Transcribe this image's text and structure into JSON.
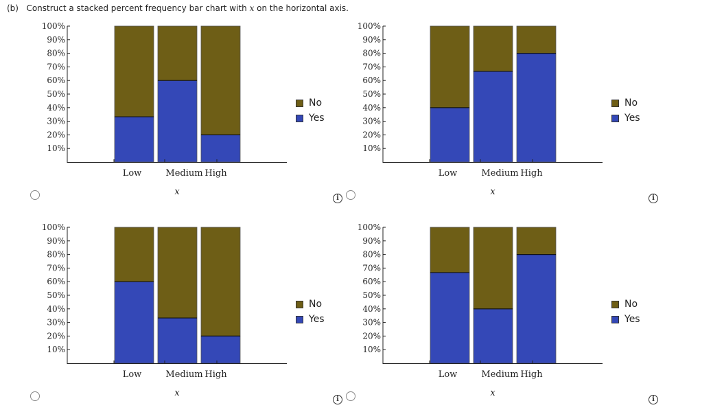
{
  "question": {
    "part": "(b)",
    "text_before": "Construct a stacked percent frequency bar chart with ",
    "var": "x",
    "text_after": " on the horizontal axis."
  },
  "colors": {
    "yes": "#3448b7",
    "no": "#6e5e16"
  },
  "chart_data": [
    {
      "type": "bar",
      "stacked": true,
      "categories": [
        "Low",
        "Medium",
        "High"
      ],
      "series": [
        {
          "name": "Yes",
          "values": [
            33.3,
            60,
            20
          ]
        },
        {
          "name": "No",
          "values": [
            66.7,
            40,
            80
          ]
        }
      ],
      "xlabel": "x",
      "ylabel": "",
      "ylim": [
        0,
        100
      ],
      "yticks": [
        "10%",
        "20%",
        "30%",
        "40%",
        "50%",
        "60%",
        "70%",
        "80%",
        "90%",
        "100%"
      ],
      "legend": "right"
    },
    {
      "type": "bar",
      "stacked": true,
      "categories": [
        "Low",
        "Medium",
        "High"
      ],
      "series": [
        {
          "name": "Yes",
          "values": [
            40,
            66.7,
            80
          ]
        },
        {
          "name": "No",
          "values": [
            60,
            33.3,
            20
          ]
        }
      ],
      "xlabel": "x",
      "ylabel": "",
      "ylim": [
        0,
        100
      ],
      "yticks": [
        "10%",
        "20%",
        "30%",
        "40%",
        "50%",
        "60%",
        "70%",
        "80%",
        "90%",
        "100%"
      ],
      "legend": "right"
    },
    {
      "type": "bar",
      "stacked": true,
      "categories": [
        "Low",
        "Medium",
        "High"
      ],
      "series": [
        {
          "name": "Yes",
          "values": [
            60,
            33.3,
            20
          ]
        },
        {
          "name": "No",
          "values": [
            40,
            66.7,
            80
          ]
        }
      ],
      "xlabel": "x",
      "ylabel": "",
      "ylim": [
        0,
        100
      ],
      "yticks": [
        "10%",
        "20%",
        "30%",
        "40%",
        "50%",
        "60%",
        "70%",
        "80%",
        "90%",
        "100%"
      ],
      "legend": "right"
    },
    {
      "type": "bar",
      "stacked": true,
      "categories": [
        "Low",
        "Medium",
        "High"
      ],
      "series": [
        {
          "name": "Yes",
          "values": [
            66.7,
            40,
            80
          ]
        },
        {
          "name": "No",
          "values": [
            33.3,
            60,
            20
          ]
        }
      ],
      "xlabel": "x",
      "ylabel": "",
      "ylim": [
        0,
        100
      ],
      "yticks": [
        "10%",
        "20%",
        "30%",
        "40%",
        "50%",
        "60%",
        "70%",
        "80%",
        "90%",
        "100%"
      ],
      "legend": "right"
    }
  ],
  "info_icon": "info-circle-icon",
  "info_glyph": "i"
}
